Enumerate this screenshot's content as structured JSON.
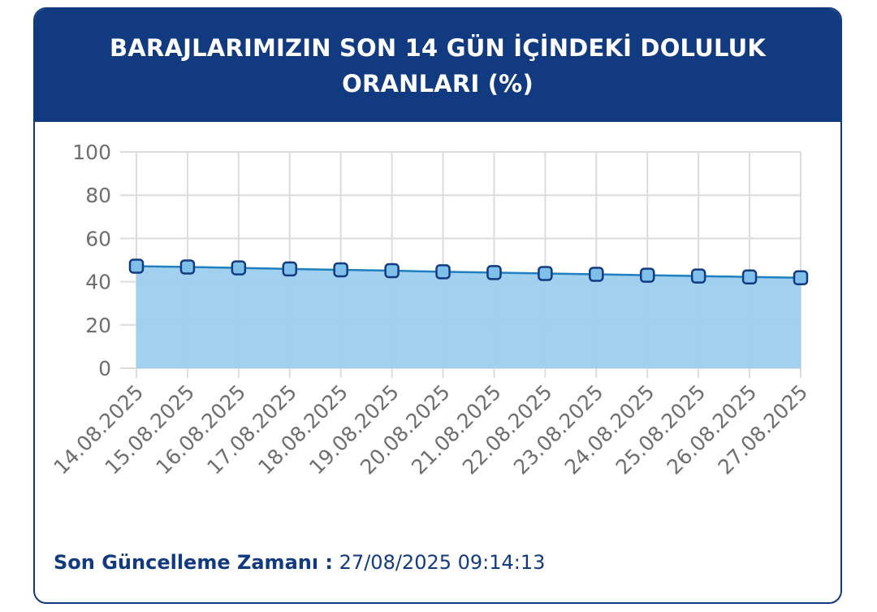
{
  "header": {
    "title": "BARAJLARIMIZIN SON 14 GÜN İÇİNDEKİ DOLULUK ORANLARI (%)"
  },
  "footer": {
    "label": "Son Güncelleme Zamanı :",
    "value": "27/08/2025 09:14:13"
  },
  "colors": {
    "header_bg": "#123a80",
    "area_fill": "#9ccfee",
    "line": "#1f7fc0",
    "marker_fill": "#7ec0ea",
    "marker_stroke": "#123a80",
    "grid": "#dcdcdc",
    "axis_text": "#6e6e6e"
  },
  "chart_data": {
    "type": "area",
    "title": "BARAJLARIMIZIN SON 14 GÜN İÇİNDEKİ DOLULUK ORANLARI (%)",
    "xlabel": "",
    "ylabel": "",
    "ylim": [
      0,
      100
    ],
    "yticks": [
      0,
      20,
      40,
      60,
      80,
      100
    ],
    "grid": true,
    "legend": "none",
    "categories": [
      "14.08.2025",
      "15.08.2025",
      "16.08.2025",
      "17.08.2025",
      "18.08.2025",
      "19.08.2025",
      "20.08.2025",
      "21.08.2025",
      "22.08.2025",
      "23.08.2025",
      "24.08.2025",
      "25.08.2025",
      "26.08.2025",
      "27.08.2025"
    ],
    "series": [
      {
        "values": [
          47.2,
          46.8,
          46.4,
          45.9,
          45.5,
          45.1,
          44.6,
          44.2,
          43.8,
          43.4,
          43.0,
          42.6,
          42.2,
          41.8
        ]
      }
    ]
  }
}
